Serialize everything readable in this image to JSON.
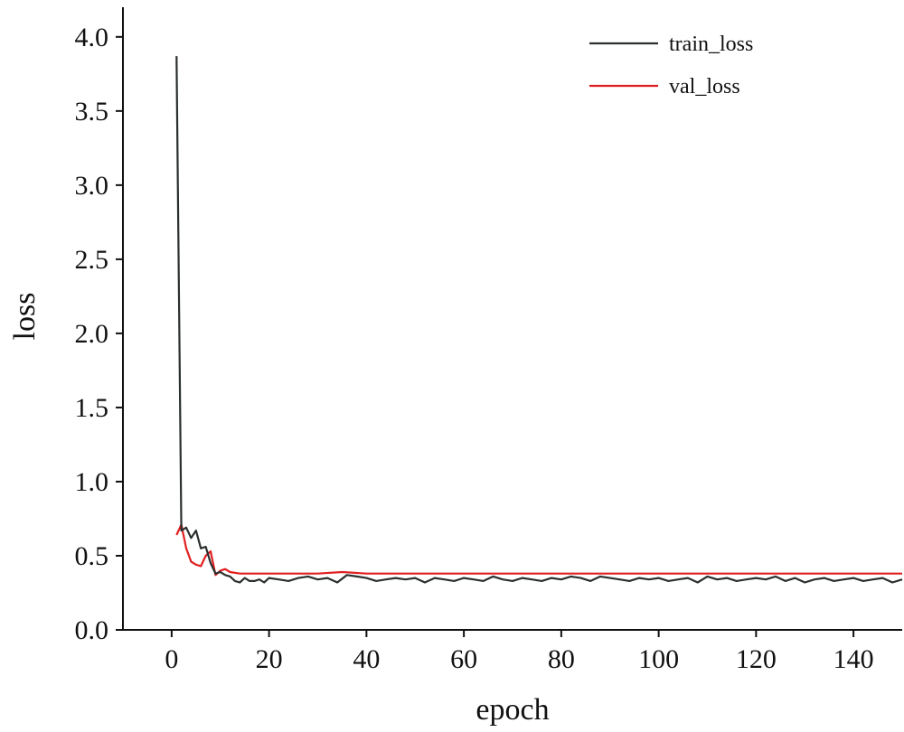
{
  "chart_data": {
    "type": "line",
    "title": "",
    "xlabel": "epoch",
    "ylabel": "loss",
    "xlim": [
      -10,
      150
    ],
    "ylim": [
      0,
      4.2
    ],
    "xticks": [
      0,
      20,
      40,
      60,
      80,
      100,
      120,
      140
    ],
    "yticks": [
      0.0,
      0.5,
      1.0,
      1.5,
      2.0,
      2.5,
      3.0,
      3.5,
      4.0
    ],
    "xtick_labels": [
      "0",
      "20",
      "40",
      "60",
      "80",
      "100",
      "120",
      "140"
    ],
    "ytick_labels": [
      "0.0",
      "0.5",
      "1.0",
      "1.5",
      "2.0",
      "2.5",
      "3.0",
      "3.5",
      "4.0"
    ],
    "grid": false,
    "legend": "top-right",
    "series": [
      {
        "name": "train_loss",
        "color": "#2b2f2f",
        "x": [
          1,
          2,
          3,
          4,
          5,
          6,
          7,
          8,
          9,
          10,
          11,
          12,
          13,
          14,
          15,
          16,
          17,
          18,
          19,
          20,
          22,
          24,
          26,
          28,
          30,
          32,
          34,
          36,
          38,
          40,
          42,
          44,
          46,
          48,
          50,
          52,
          54,
          56,
          58,
          60,
          62,
          64,
          66,
          68,
          70,
          72,
          74,
          76,
          78,
          80,
          82,
          84,
          86,
          88,
          90,
          92,
          94,
          96,
          98,
          100,
          102,
          104,
          106,
          108,
          110,
          112,
          114,
          116,
          118,
          120,
          122,
          124,
          126,
          128,
          130,
          132,
          134,
          136,
          138,
          140,
          142,
          144,
          146,
          148,
          150
        ],
        "y": [
          3.87,
          0.67,
          0.69,
          0.62,
          0.67,
          0.55,
          0.56,
          0.45,
          0.38,
          0.39,
          0.37,
          0.36,
          0.33,
          0.32,
          0.35,
          0.33,
          0.33,
          0.34,
          0.32,
          0.35,
          0.34,
          0.33,
          0.35,
          0.36,
          0.34,
          0.35,
          0.32,
          0.37,
          0.36,
          0.35,
          0.33,
          0.34,
          0.35,
          0.34,
          0.35,
          0.32,
          0.35,
          0.34,
          0.33,
          0.35,
          0.34,
          0.33,
          0.36,
          0.34,
          0.33,
          0.35,
          0.34,
          0.33,
          0.35,
          0.34,
          0.36,
          0.35,
          0.33,
          0.36,
          0.35,
          0.34,
          0.33,
          0.35,
          0.34,
          0.35,
          0.33,
          0.34,
          0.35,
          0.32,
          0.36,
          0.34,
          0.35,
          0.33,
          0.34,
          0.35,
          0.34,
          0.36,
          0.33,
          0.35,
          0.32,
          0.34,
          0.35,
          0.33,
          0.34,
          0.35,
          0.33,
          0.34,
          0.35,
          0.32,
          0.34
        ]
      },
      {
        "name": "val_loss",
        "color": "#e02020",
        "x": [
          1,
          2,
          3,
          4,
          5,
          6,
          7,
          8,
          9,
          10,
          11,
          12,
          14,
          16,
          18,
          20,
          25,
          30,
          35,
          40,
          45,
          50,
          55,
          60,
          65,
          70,
          75,
          80,
          85,
          90,
          95,
          100,
          105,
          110,
          115,
          120,
          125,
          130,
          135,
          140,
          145,
          150
        ],
        "y": [
          0.64,
          0.71,
          0.55,
          0.46,
          0.44,
          0.43,
          0.5,
          0.53,
          0.37,
          0.4,
          0.41,
          0.39,
          0.38,
          0.38,
          0.38,
          0.38,
          0.38,
          0.38,
          0.39,
          0.38,
          0.38,
          0.38,
          0.38,
          0.38,
          0.38,
          0.38,
          0.38,
          0.38,
          0.38,
          0.38,
          0.38,
          0.38,
          0.38,
          0.38,
          0.38,
          0.38,
          0.38,
          0.38,
          0.38,
          0.38,
          0.38,
          0.38
        ]
      }
    ]
  }
}
